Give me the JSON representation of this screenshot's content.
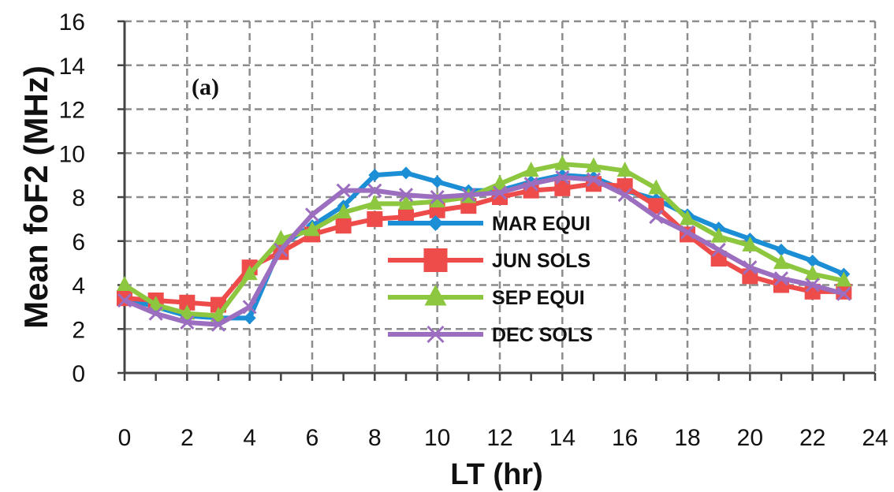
{
  "chart_data": {
    "type": "line",
    "panel_label": "(a)",
    "xlabel": "LT (hr)",
    "ylabel": "Mean foF2 (MHz)",
    "xlim": [
      0,
      24
    ],
    "ylim": [
      0,
      16
    ],
    "xticks": [
      0,
      2,
      4,
      6,
      8,
      10,
      12,
      14,
      16,
      18,
      20,
      22,
      24
    ],
    "yticks": [
      0,
      2,
      4,
      6,
      8,
      10,
      12,
      14,
      16
    ],
    "grid": true,
    "legend_position": "center",
    "x": [
      0,
      1,
      2,
      3,
      4,
      5,
      6,
      7,
      8,
      9,
      10,
      11,
      12,
      13,
      14,
      15,
      16,
      17,
      18,
      19,
      20,
      21,
      22,
      23
    ],
    "series": [
      {
        "name": "MAR EQUI",
        "color": "#1b8ed6",
        "marker": "diamond",
        "values": [
          3.4,
          3.0,
          2.6,
          2.5,
          2.5,
          5.8,
          6.7,
          7.6,
          9.0,
          9.1,
          8.7,
          8.3,
          8.3,
          8.7,
          9.0,
          8.9,
          8.3,
          7.9,
          7.2,
          6.6,
          6.1,
          5.6,
          5.1,
          4.5
        ]
      },
      {
        "name": "JUN SOLS",
        "color": "#ee4b4b",
        "marker": "square",
        "values": [
          3.4,
          3.3,
          3.2,
          3.1,
          4.8,
          5.5,
          6.3,
          6.7,
          7.0,
          7.1,
          7.4,
          7.6,
          8.0,
          8.3,
          8.4,
          8.6,
          8.5,
          7.6,
          6.3,
          5.2,
          4.4,
          4.0,
          3.7,
          3.7
        ]
      },
      {
        "name": "SEP EQUI",
        "color": "#8dc63f",
        "marker": "triangle",
        "values": [
          4.0,
          3.1,
          2.7,
          2.6,
          4.5,
          6.1,
          6.5,
          7.3,
          7.7,
          7.7,
          7.8,
          8.0,
          8.6,
          9.2,
          9.5,
          9.4,
          9.2,
          8.4,
          7.0,
          6.2,
          5.8,
          5.0,
          4.5,
          4.2
        ]
      },
      {
        "name": "DEC SOLS",
        "color": "#9b6ebf",
        "marker": "x",
        "values": [
          3.3,
          2.7,
          2.3,
          2.2,
          3.0,
          5.6,
          7.2,
          8.3,
          8.3,
          8.1,
          8.0,
          8.1,
          8.2,
          8.6,
          8.9,
          8.8,
          8.1,
          7.1,
          6.4,
          5.6,
          4.8,
          4.3,
          4.0,
          3.6
        ]
      }
    ]
  }
}
